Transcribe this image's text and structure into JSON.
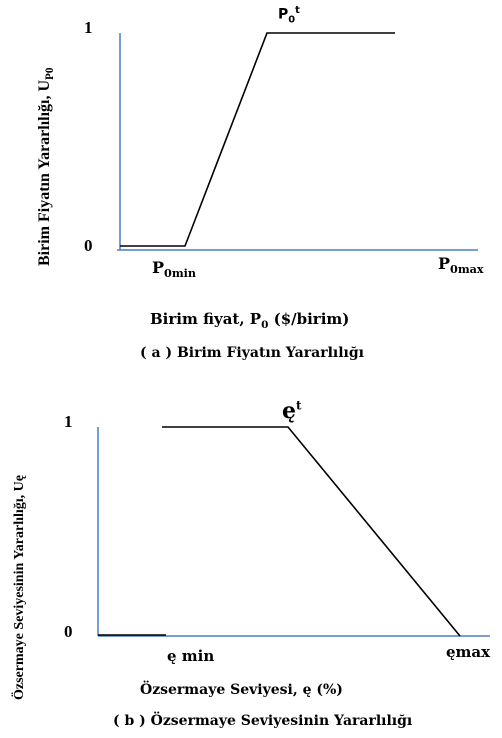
{
  "panel_a": {
    "y_axis_label": "Birim Fiyatın Yararlılığı, U",
    "y_axis_label_sub": "P0",
    "tick_1": "1",
    "tick_0": "0",
    "peak_label": "P",
    "peak_label_sub": "0",
    "peak_label_sup": "t",
    "min_label": "P",
    "min_label_sub": "0min",
    "max_label": "P",
    "max_label_sub": "0max",
    "x_axis_label": "Birim fiyat, P",
    "x_axis_label_sub": "0",
    "x_axis_label_unit": " ($/birim)",
    "caption": "( a ) Birim Fiyatın Yararlılığı",
    "line_color": "#000000",
    "axis_color": "#4a7fc1"
  },
  "panel_b": {
    "y_axis_label": "Özsermaye Seviyesinin Yararlılığı, Uę",
    "tick_1": "1",
    "tick_0": "0",
    "peak_label": "ę",
    "peak_label_sup": "t",
    "min_label": "ę min",
    "max_label": "ęmax",
    "x_axis_label": "Özsermaye Seviyesi, ę (%)",
    "caption": "( b ) Özsermaye Seviyesinin Yararlılığı",
    "line_color": "#000000",
    "axis_color": "#4a7fc1"
  }
}
